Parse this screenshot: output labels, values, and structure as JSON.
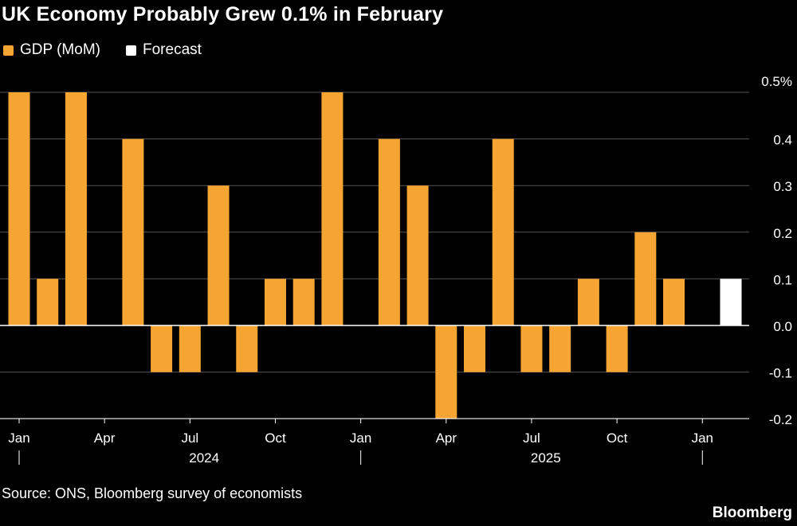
{
  "chart_data": {
    "type": "bar",
    "title": "UK Economy Probably Grew 0.1% in February",
    "series": [
      {
        "name": "GDP (MoM)",
        "color": "#f7a532"
      },
      {
        "name": "Forecast",
        "color": "#ffffff"
      }
    ],
    "x": [
      "2024-01",
      "2024-02",
      "2024-03",
      "2024-04",
      "2024-05",
      "2024-06",
      "2024-07",
      "2024-08",
      "2024-09",
      "2024-10",
      "2024-11",
      "2024-12",
      "2025-01",
      "2025-02",
      "2025-03",
      "2025-04",
      "2025-05",
      "2025-06",
      "2025-07",
      "2025-08",
      "2025-09",
      "2025-10",
      "2025-11",
      "2025-12",
      "2026-01",
      "2026-02"
    ],
    "values": [
      0.5,
      0.1,
      0.5,
      0,
      0.4,
      -0.1,
      -0.1,
      0.3,
      -0.1,
      0.1,
      0.1,
      0.5,
      0,
      0.4,
      0.3,
      -0.2,
      -0.1,
      0.4,
      -0.1,
      -0.1,
      0.1,
      -0.1,
      0.2,
      0.1,
      0,
      0.1
    ],
    "forecast_index": 25,
    "ylim": [
      -0.2,
      0.5
    ],
    "yticks": [
      "0.5%",
      "0.4",
      "0.3",
      "0.2",
      "0.1",
      "0.0",
      "-0.1",
      "-0.2"
    ],
    "ytick_values": [
      0.5,
      0.4,
      0.3,
      0.2,
      0.1,
      0,
      -0.1,
      -0.2
    ],
    "xtick_labels": [
      {
        "label": "Jan",
        "index": 0
      },
      {
        "label": "Apr",
        "index": 3
      },
      {
        "label": "Jul",
        "index": 6
      },
      {
        "label": "Oct",
        "index": 9
      },
      {
        "label": "Jan",
        "index": 12
      },
      {
        "label": "Apr",
        "index": 15
      },
      {
        "label": "Jul",
        "index": 18
      },
      {
        "label": "Oct",
        "index": 21
      },
      {
        "label": "Jan",
        "index": 24
      }
    ],
    "year_labels": [
      {
        "label": "2024",
        "index": 6.5
      },
      {
        "label": "2025",
        "index": 18.5
      }
    ],
    "grid": true,
    "legend_placement": "top-left"
  },
  "source": "Source: ONS, Bloomberg survey of economists",
  "brand": "Bloomberg"
}
